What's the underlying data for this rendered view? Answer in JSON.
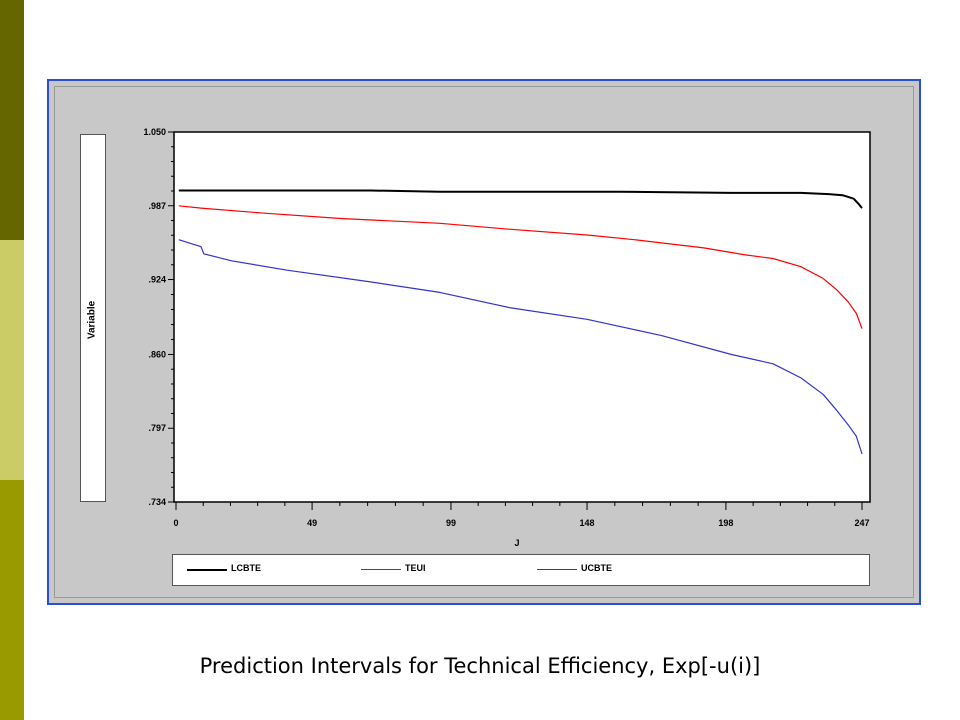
{
  "caption": "Prediction Intervals for Technical Efficiency, Exp[-u(i)]",
  "colors": {
    "strip_top": "#666600",
    "strip_mid": "#cccc66",
    "strip_bottom": "#999900",
    "panel_border": "#2a4fd6"
  },
  "variable_label": "Variable",
  "chart_data": {
    "type": "line",
    "title": "",
    "xlabel": "J",
    "ylabel": "",
    "xlim": [
      0,
      247
    ],
    "ylim": [
      0.734,
      1.05
    ],
    "x_ticks": [
      0,
      49,
      99,
      148,
      198,
      247
    ],
    "x_tick_labels": [
      "0",
      "49",
      "99",
      "148",
      "198",
      "247"
    ],
    "y_ticks": [
      0.734,
      0.797,
      0.86,
      0.924,
      0.987,
      1.05
    ],
    "y_tick_labels": [
      ".734",
      ".797",
      ".860",
      ".924",
      ".987",
      "1.050"
    ],
    "legend_position": "bottom",
    "series": [
      {
        "name": "LCBTE",
        "color": "#000000",
        "points": [
          [
            1,
            1.0
          ],
          [
            30,
            1.0
          ],
          [
            70,
            1.0
          ],
          [
            95,
            0.999
          ],
          [
            130,
            0.999
          ],
          [
            160,
            0.999
          ],
          [
            200,
            0.998
          ],
          [
            225,
            0.998
          ],
          [
            235,
            0.997
          ],
          [
            240,
            0.996
          ],
          [
            244,
            0.993
          ],
          [
            246,
            0.988
          ],
          [
            247,
            0.985
          ]
        ]
      },
      {
        "name": "TEUI",
        "color": "#ff0000",
        "points": [
          [
            1,
            0.987
          ],
          [
            9,
            0.985
          ],
          [
            30,
            0.981
          ],
          [
            60,
            0.976
          ],
          [
            95,
            0.972
          ],
          [
            120,
            0.967
          ],
          [
            148,
            0.962
          ],
          [
            165,
            0.958
          ],
          [
            190,
            0.951
          ],
          [
            205,
            0.945
          ],
          [
            215,
            0.942
          ],
          [
            225,
            0.935
          ],
          [
            233,
            0.925
          ],
          [
            238,
            0.915
          ],
          [
            242,
            0.905
          ],
          [
            245,
            0.895
          ],
          [
            247,
            0.882
          ]
        ]
      },
      {
        "name": "UCBTE",
        "color": "#3333cc",
        "points": [
          [
            1,
            0.958
          ],
          [
            9,
            0.952
          ],
          [
            10,
            0.946
          ],
          [
            20,
            0.94
          ],
          [
            40,
            0.932
          ],
          [
            70,
            0.922
          ],
          [
            95,
            0.913
          ],
          [
            120,
            0.9
          ],
          [
            148,
            0.89
          ],
          [
            175,
            0.876
          ],
          [
            200,
            0.86
          ],
          [
            215,
            0.852
          ],
          [
            225,
            0.84
          ],
          [
            233,
            0.826
          ],
          [
            238,
            0.812
          ],
          [
            242,
            0.8
          ],
          [
            245,
            0.79
          ],
          [
            247,
            0.775
          ]
        ]
      }
    ]
  }
}
